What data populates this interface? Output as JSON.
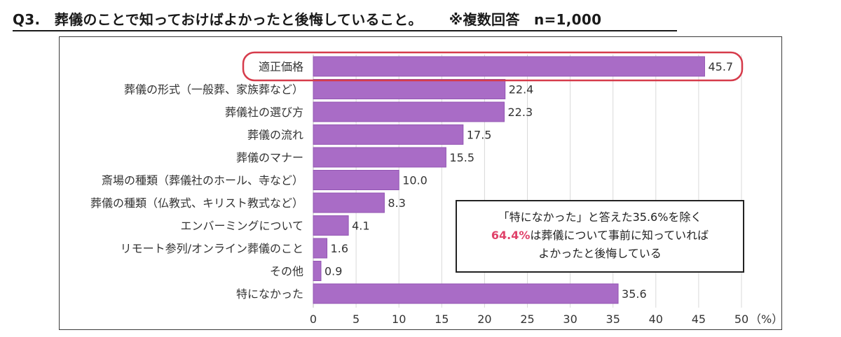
{
  "question": {
    "text": "Q3.　葬儀のことで知っておけばよかったと後悔していること。",
    "note": "※複数回答　n=1,000"
  },
  "callout": {
    "line1": "「特になかった」と答えた35.6%を除く",
    "highlight": "64.4%",
    "line2_rest": "は葬儀について事前に知っていれば",
    "line3": "よかったと後悔している"
  },
  "chart_data": {
    "type": "bar",
    "orientation": "horizontal",
    "categories": [
      "適正価格",
      "葬儀の形式（一般葬、家族葬など）",
      "葬儀社の選び方",
      "葬儀の流れ",
      "葬儀のマナー",
      "斎場の種類（葬儀社のホール、寺など）",
      "葬儀の種類（仏教式、キリスト教式など）",
      "エンバーミングについて",
      "リモート参列/オンライン葬儀のこと",
      "その他",
      "特になかった"
    ],
    "values": [
      45.7,
      22.4,
      22.3,
      17.5,
      15.5,
      10.0,
      8.3,
      4.1,
      1.6,
      0.9,
      35.6
    ],
    "value_labels": [
      "45.7",
      "22.4",
      "22.3",
      "17.5",
      "15.5",
      "10.0",
      "8.3",
      "4.1",
      "1.6",
      "0.9",
      "35.6"
    ],
    "xlim": [
      0,
      50
    ],
    "xticks": [
      0,
      5,
      10,
      15,
      20,
      25,
      30,
      35,
      40,
      45,
      50
    ],
    "xunit": "（%）",
    "highlighted_category": "適正価格",
    "grid": true,
    "colors": {
      "bar": "#a96cc6",
      "bar_stroke": "#9356b3",
      "grid": "#d9d9d9",
      "highlight_outline": "#d63b4b",
      "text": "#333333"
    }
  }
}
